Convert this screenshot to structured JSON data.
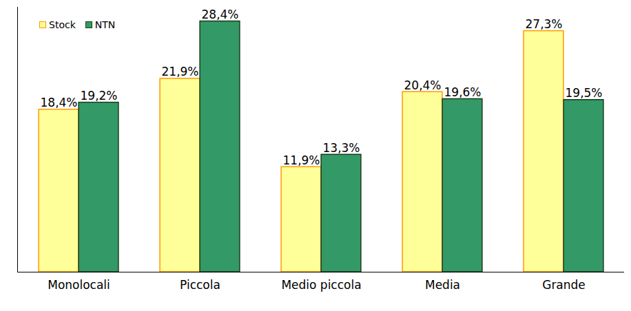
{
  "chart_data": {
    "type": "bar",
    "categories": [
      "Monolocali",
      "Piccola",
      "Medio piccola",
      "Media",
      "Grande"
    ],
    "series": [
      {
        "name": "Stock",
        "color": "#ffff99",
        "values": [
          18.4,
          21.9,
          11.9,
          20.4,
          27.3
        ],
        "value_labels": [
          "18,4%",
          "21,9%",
          "11,9%",
          "20,4%",
          "27,3%"
        ]
      },
      {
        "name": "NTN",
        "color": "#339966",
        "values": [
          19.2,
          28.4,
          13.3,
          19.6,
          19.5
        ],
        "value_labels": [
          "19,2%",
          "28,4%",
          "13,3%",
          "19,6%",
          "19,5%"
        ]
      }
    ],
    "ylim": [
      0,
      30
    ],
    "yticks": [],
    "grid": false,
    "legend": "top-left",
    "data_labels": true,
    "tick_labels": "x"
  }
}
